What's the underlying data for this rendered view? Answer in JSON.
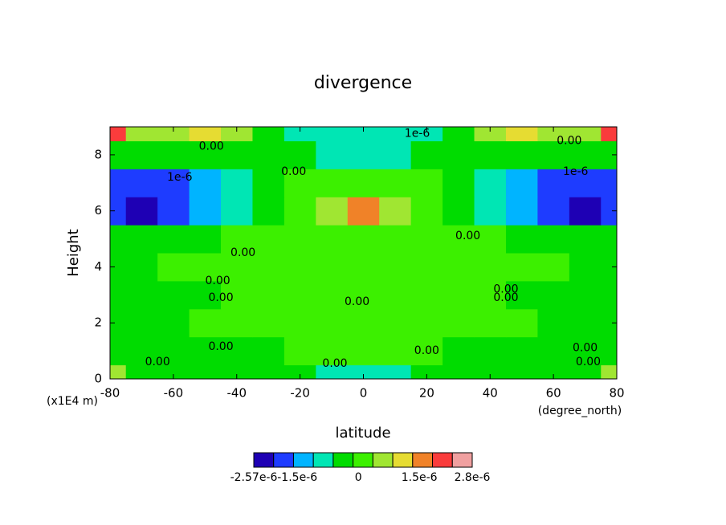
{
  "chart_data": {
    "type": "contour",
    "title": "divergence",
    "xlabel": "latitude",
    "ylabel": "Height",
    "yunit": "(x1E4 m)",
    "xunit": "(degree_north)",
    "xlim": [
      -80,
      80
    ],
    "ylim": [
      0,
      9
    ],
    "xticks": [
      -80,
      -60,
      -40,
      -20,
      0,
      20,
      40,
      60,
      80
    ],
    "yticks": [
      0,
      2,
      4,
      6,
      8
    ],
    "x": [
      -80,
      -70,
      -60,
      -50,
      -40,
      -30,
      -20,
      -10,
      0,
      10,
      20,
      30,
      40,
      50,
      60,
      70,
      80
    ],
    "y": [
      0,
      1,
      2,
      3,
      4,
      5,
      6,
      7,
      8,
      9
    ],
    "z": [
      [
        5e-07,
        -3e-07,
        -3e-07,
        -3e-07,
        -3e-07,
        -3e-07,
        -3e-07,
        -8e-07,
        -8e-07,
        -8e-07,
        -3e-07,
        -3e-07,
        -3e-07,
        -3e-07,
        -3e-07,
        -3e-07,
        5e-07
      ],
      [
        -3e-07,
        -3e-07,
        -3e-07,
        -3e-07,
        -3e-07,
        -2e-07,
        1e-07,
        1e-07,
        1e-07,
        1e-07,
        1e-07,
        -2e-07,
        -3e-07,
        -3e-07,
        -3e-07,
        -3e-07,
        -3e-07
      ],
      [
        -3e-07,
        -3e-07,
        -3e-07,
        1e-07,
        1e-07,
        1e-07,
        1e-07,
        1e-07,
        1e-07,
        1e-07,
        1e-07,
        1e-07,
        1e-07,
        1e-07,
        -3e-07,
        -3e-07,
        -3e-07
      ],
      [
        -3e-07,
        -3e-07,
        -3e-07,
        -3e-07,
        1e-07,
        1e-07,
        1e-07,
        1e-07,
        1e-07,
        1e-07,
        1e-07,
        1e-07,
        1e-07,
        -3e-07,
        -3e-07,
        -3e-07,
        -3e-07
      ],
      [
        -3e-07,
        -3e-07,
        1e-07,
        1e-07,
        1e-07,
        1e-07,
        1e-07,
        1e-07,
        1e-07,
        1e-07,
        1e-07,
        1e-07,
        1e-07,
        1e-07,
        1e-07,
        -3e-07,
        -3e-07
      ],
      [
        -5e-07,
        -5e-07,
        -5e-07,
        -3e-07,
        1e-07,
        1e-07,
        1e-07,
        1e-07,
        2e-07,
        1e-07,
        1e-07,
        1e-07,
        1e-07,
        -3e-07,
        -5e-07,
        -5e-07,
        -5e-07
      ],
      [
        -1.8e-06,
        -2.2e-06,
        -1.8e-06,
        -1.3e-06,
        -7e-07,
        -3e-07,
        1e-07,
        5e-07,
        1.5e-06,
        5e-07,
        1e-07,
        -3e-07,
        -7e-07,
        -1.3e-06,
        -1.8e-06,
        -2.2e-06,
        -1.8e-06
      ],
      [
        -1.8e-06,
        -1.8e-06,
        -1.8e-06,
        -1.3e-06,
        -8e-07,
        -3e-07,
        1e-07,
        1e-07,
        1e-07,
        1e-07,
        1e-07,
        -3e-07,
        -8e-07,
        -1.3e-06,
        -1.8e-06,
        -1.8e-06,
        -1.8e-06
      ],
      [
        -3e-07,
        -3e-07,
        -3e-07,
        -3e-07,
        -3e-07,
        -3e-07,
        -3e-07,
        -8e-07,
        -8e-07,
        -8e-07,
        -3e-07,
        -3e-07,
        -3e-07,
        -3e-07,
        -3e-07,
        -3e-07,
        -3e-07
      ],
      [
        2e-06,
        5e-07,
        5e-07,
        1e-06,
        5e-07,
        -3e-07,
        -8e-07,
        -1e-06,
        -1e-06,
        -1e-06,
        -8e-07,
        -3e-07,
        5e-07,
        1e-06,
        5e-07,
        5e-07,
        2e-06
      ]
    ],
    "clim": [
      -2.57e-06,
      2.8e-06
    ],
    "colors": [
      "#1e00b4",
      "#1e3cff",
      "#00b4ff",
      "#00e6b4",
      "#00dc00",
      "#3cf000",
      "#a0e632",
      "#e6dc32",
      "#f08228",
      "#fa3c3c",
      "#f0a0a0"
    ],
    "cticks": [
      {
        "value": -2.57e-06,
        "label": "-2.57e-6"
      },
      {
        "value": -1.5e-06,
        "label": "-1.5e-6"
      },
      0,
      {
        "value": 1.5e-06,
        "label": "1.5e-6"
      },
      {
        "value": 2.8e-06,
        "label": "2.8e-6"
      }
    ],
    "contour_labels": [
      {
        "text": "0.00",
        "x": -48,
        "y": 8.3
      },
      {
        "text": "0.00",
        "x": -22,
        "y": 7.4
      },
      {
        "text": "0.00",
        "x": 65,
        "y": 8.5
      },
      {
        "text": "0.00",
        "x": 33,
        "y": 5.1
      },
      {
        "text": "0.00",
        "x": -38,
        "y": 4.5
      },
      {
        "text": "0.00",
        "x": -46,
        "y": 3.5
      },
      {
        "text": "0.00",
        "x": -45,
        "y": 2.9
      },
      {
        "text": "0.00",
        "x": -2,
        "y": 2.75
      },
      {
        "text": "0.00",
        "x": 45,
        "y": 3.2
      },
      {
        "text": "0.00",
        "x": 45,
        "y": 2.9
      },
      {
        "text": "0.00",
        "x": -45,
        "y": 1.15
      },
      {
        "text": "0.00",
        "x": -65,
        "y": 0.6
      },
      {
        "text": "0.00",
        "x": -9,
        "y": 0.55
      },
      {
        "text": "0.00",
        "x": 20,
        "y": 1.0
      },
      {
        "text": "0.00",
        "x": 70,
        "y": 1.1
      },
      {
        "text": "0.00",
        "x": 71,
        "y": 0.6
      },
      {
        "text": "1e-6",
        "x": -58,
        "y": 7.2
      },
      {
        "text": "1e-6",
        "x": 67,
        "y": 7.4
      },
      {
        "text": "1e-6",
        "x": 17,
        "y": 8.75
      }
    ]
  }
}
